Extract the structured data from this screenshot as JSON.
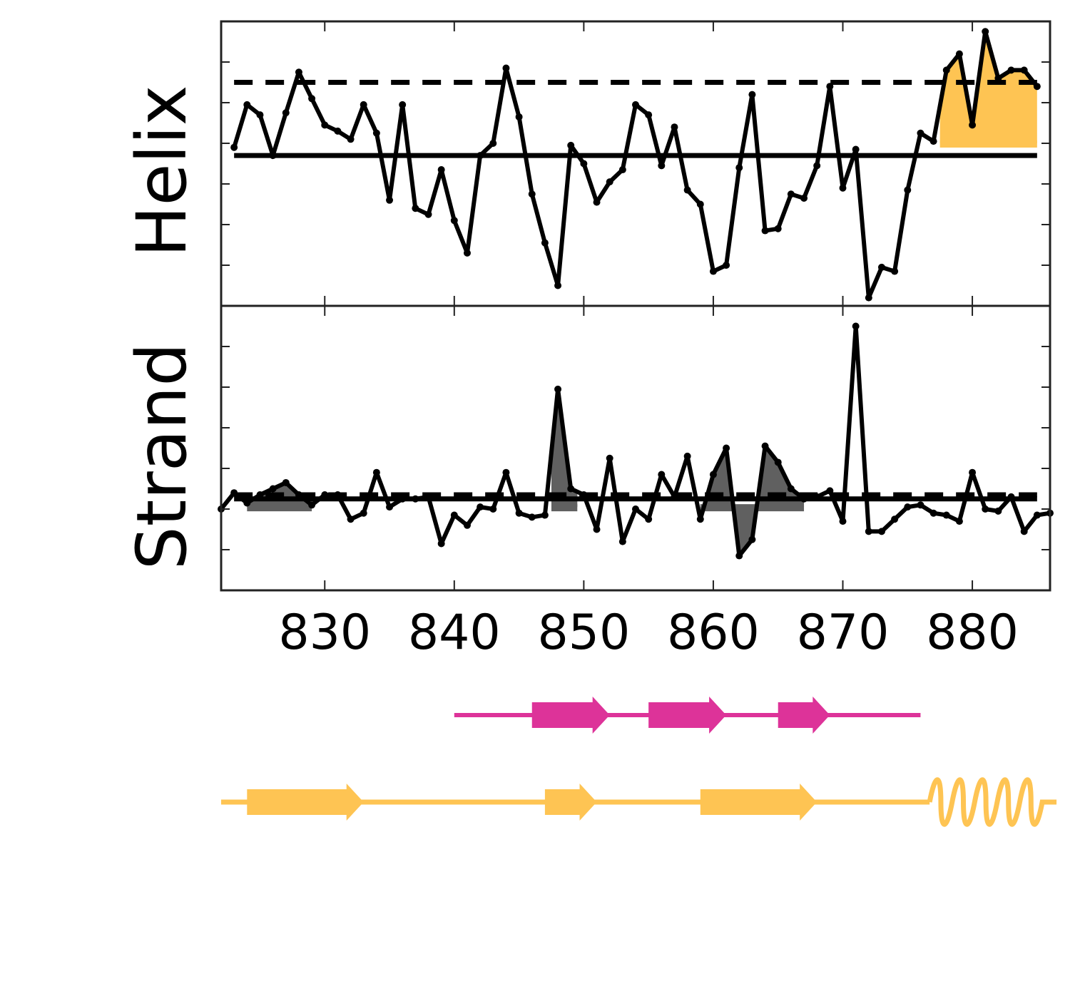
{
  "chart_data": {
    "type": "line",
    "xlim": [
      822,
      886
    ],
    "xticks": [
      "830",
      "840",
      "850",
      "860",
      "870",
      "880"
    ],
    "xtick_values": [
      830,
      840,
      850,
      860,
      870,
      880
    ],
    "panels": [
      {
        "ylabel": "Helix",
        "ylim": [
          0,
          7
        ],
        "reference_solid": 3.7,
        "reference_dashed": 5.5,
        "fill_color": "#FEC453",
        "x": [
          823,
          824,
          825,
          826,
          827,
          828,
          829,
          830,
          831,
          832,
          833,
          834,
          835,
          836,
          837,
          838,
          839,
          840,
          841,
          842,
          843,
          844,
          845,
          846,
          847,
          848,
          849,
          850,
          851,
          852,
          853,
          854,
          855,
          856,
          857,
          858,
          859,
          860,
          861,
          862,
          863,
          864,
          865,
          866,
          867,
          868,
          869,
          870,
          871,
          872,
          873,
          874,
          875,
          876,
          877,
          878,
          879,
          880,
          881,
          882,
          883,
          884,
          885
        ],
        "y": [
          3.9,
          4.95,
          4.7,
          3.7,
          4.75,
          5.75,
          5.1,
          4.45,
          4.3,
          4.1,
          4.95,
          4.25,
          2.6,
          4.95,
          2.4,
          2.25,
          3.35,
          2.1,
          1.3,
          3.7,
          4.0,
          5.85,
          4.65,
          2.75,
          1.55,
          0.5,
          3.95,
          3.5,
          2.55,
          3.05,
          3.35,
          4.95,
          4.7,
          3.45,
          4.4,
          2.85,
          2.5,
          0.85,
          1.0,
          3.4,
          5.2,
          1.85,
          1.9,
          2.75,
          2.65,
          3.45,
          5.4,
          2.9,
          3.85,
          0.2,
          0.95,
          0.85,
          2.85,
          4.25,
          4.05,
          5.8,
          6.2,
          4.45,
          6.75,
          5.6,
          5.8,
          5.8,
          5.4
        ],
        "filled_segments": [
          {
            "from": 877.5,
            "to": 885
          }
        ]
      },
      {
        "ylabel": "Strand",
        "ylim": [
          0,
          7
        ],
        "reference_solid": 2.25,
        "reference_dashed": 2.35,
        "fill_color": "#606060",
        "x": [
          822,
          823,
          824,
          825,
          826,
          827,
          828,
          829,
          830,
          831,
          832,
          833,
          834,
          835,
          836,
          837,
          838,
          839,
          840,
          841,
          842,
          843,
          844,
          845,
          846,
          847,
          848,
          849,
          850,
          851,
          852,
          853,
          854,
          855,
          856,
          857,
          858,
          859,
          860,
          861,
          862,
          863,
          864,
          865,
          866,
          867,
          868,
          869,
          870,
          871,
          872,
          873,
          874,
          875,
          876,
          877,
          878,
          879,
          880,
          881,
          882,
          883,
          884,
          885,
          886
        ],
        "y": [
          2.0,
          2.4,
          2.15,
          2.35,
          2.5,
          2.65,
          2.35,
          2.1,
          2.35,
          2.35,
          1.75,
          1.9,
          2.9,
          2.05,
          2.25,
          2.25,
          2.3,
          1.15,
          1.85,
          1.6,
          2.05,
          2.0,
          2.9,
          1.9,
          1.8,
          1.85,
          4.95,
          2.5,
          2.35,
          1.5,
          3.25,
          1.2,
          2.0,
          1.75,
          2.85,
          2.3,
          3.3,
          1.75,
          2.85,
          3.5,
          0.85,
          1.25,
          3.55,
          3.15,
          2.5,
          2.25,
          2.3,
          2.45,
          1.7,
          6.5,
          1.45,
          1.45,
          1.75,
          2.05,
          2.1,
          1.9,
          1.85,
          1.7,
          2.9,
          2.0,
          1.95,
          2.3,
          1.45,
          1.85,
          1.9
        ],
        "filled_segments": [
          {
            "from": 824,
            "to": 829
          },
          {
            "from": 847.5,
            "to": 849.5
          },
          {
            "from": 859,
            "to": 867
          }
        ]
      }
    ],
    "secondary_structure_tracks": [
      {
        "color": "#DD3399",
        "coil_range": [
          840,
          876
        ],
        "strands": [
          [
            846,
            852
          ],
          [
            855,
            861
          ],
          [
            865,
            869
          ]
        ],
        "helices": []
      },
      {
        "color": "#FEC453",
        "coil_range": [
          822,
          886.5
        ],
        "strands": [
          [
            824,
            833
          ],
          [
            847,
            851
          ],
          [
            859,
            868
          ]
        ],
        "helices": [
          [
            876.7,
            886.5
          ]
        ]
      }
    ]
  }
}
